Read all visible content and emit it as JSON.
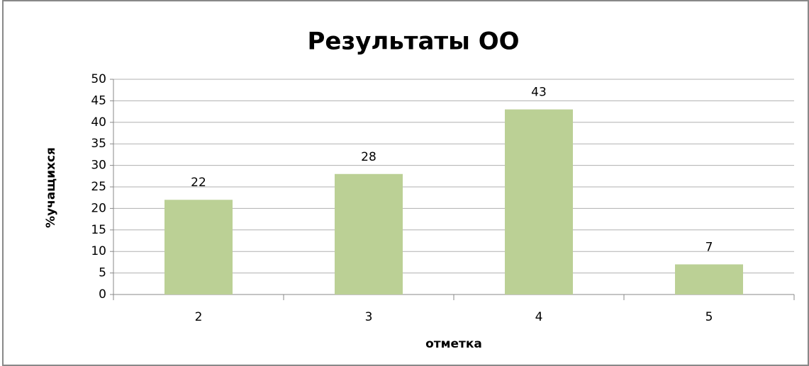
{
  "chart_data": {
    "type": "bar",
    "title": "Результаты ОО",
    "categories": [
      "2",
      "3",
      "4",
      "5"
    ],
    "values": [
      22,
      28,
      43,
      7
    ],
    "color": "#bbd095",
    "xlabel": "отметка",
    "ylabel": "%учащихся",
    "ylim": [
      0,
      50
    ],
    "yticks": [
      0,
      5,
      10,
      15,
      20,
      25,
      30,
      35,
      40,
      45,
      50
    ],
    "grid": true
  }
}
